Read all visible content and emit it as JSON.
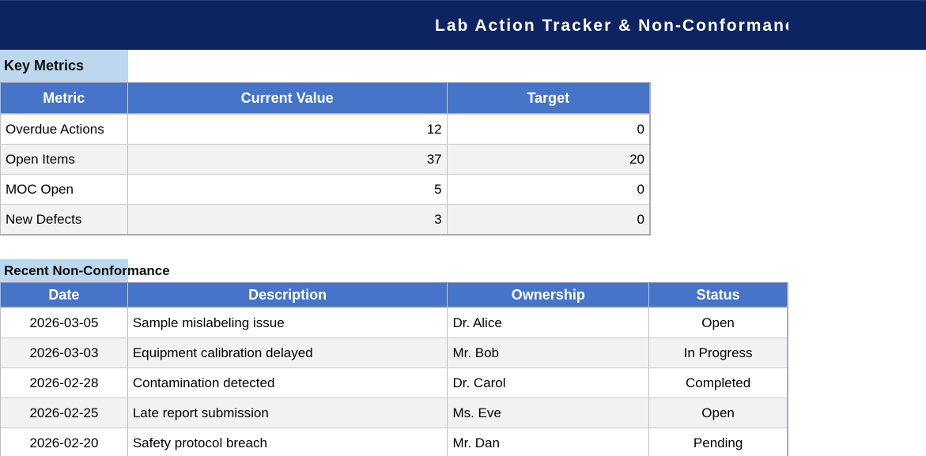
{
  "banner": {
    "title": "Lab Action Tracker & Non-Conformance",
    "bg_color": "#0E2462",
    "text_color": "#FFFFFF"
  },
  "colors": {
    "table_header_bg": "#4674C8",
    "table_header_text": "#FFFFFF",
    "section_label_bg": "#BDD7EE",
    "row_bg": "#FFFFFF",
    "row_alt_bg": "#F2F2F2",
    "border": "#B9BDC4"
  },
  "key_metrics": {
    "section_label": "Key Metrics",
    "columns": [
      "Metric",
      "Current Value",
      "Target"
    ],
    "rows": [
      {
        "metric": "Overdue Actions",
        "current_value": "12",
        "target": "0"
      },
      {
        "metric": "Open Items",
        "current_value": "37",
        "target": "20"
      },
      {
        "metric": "MOC Open",
        "current_value": "5",
        "target": "0"
      },
      {
        "metric": "New Defects",
        "current_value": "3",
        "target": "0"
      }
    ]
  },
  "non_conformance": {
    "section_label": "Recent Non-Conformance",
    "columns": [
      "Date",
      "Description",
      "Ownership",
      "Status"
    ],
    "rows": [
      {
        "date": "2026-03-05",
        "description": "Sample mislabeling issue",
        "ownership": "Dr. Alice",
        "status": "Open"
      },
      {
        "date": "2026-03-03",
        "description": "Equipment calibration delayed",
        "ownership": "Mr. Bob",
        "status": "In Progress"
      },
      {
        "date": "2026-02-28",
        "description": "Contamination detected",
        "ownership": "Dr. Carol",
        "status": "Completed"
      },
      {
        "date": "2026-02-25",
        "description": "Late report submission",
        "ownership": "Ms. Eve",
        "status": "Open"
      },
      {
        "date": "2026-02-20",
        "description": "Safety protocol breach",
        "ownership": "Mr. Dan",
        "status": "Pending"
      }
    ]
  }
}
